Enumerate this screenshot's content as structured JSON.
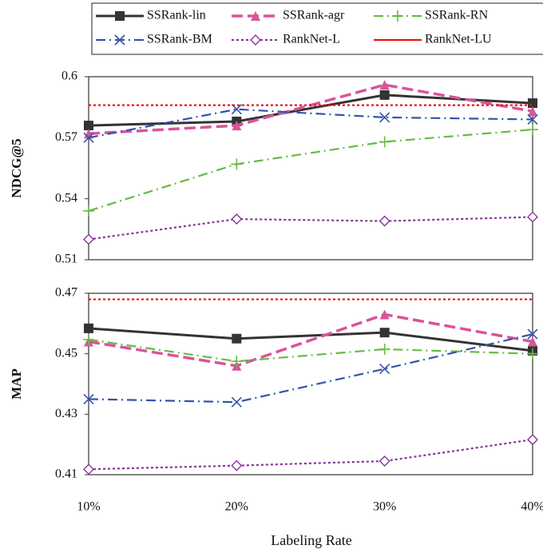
{
  "chart_data": [
    {
      "type": "line",
      "ylabel": "NDCG@5",
      "ylim": [
        0.51,
        0.6
      ],
      "yticks": [
        0.51,
        0.54,
        0.57,
        0.6
      ],
      "series": [
        {
          "name": "SSRank-lin",
          "color": "#333333",
          "dash": "solid",
          "marker": "square",
          "values": [
            0.576,
            0.578,
            0.591,
            0.587
          ]
        },
        {
          "name": "SSRank-agr",
          "color": "#d9549a",
          "dash": "long",
          "marker": "triangle",
          "values": [
            0.572,
            0.576,
            0.596,
            0.583
          ]
        },
        {
          "name": "SSRank-RN",
          "color": "#66bb44",
          "dash": "dashdot",
          "marker": "plus",
          "values": [
            0.534,
            0.557,
            0.568,
            0.574
          ]
        },
        {
          "name": "SSRank-BM",
          "color": "#3355aa",
          "dash": "dashdot",
          "marker": "x",
          "values": [
            0.57,
            0.584,
            0.58,
            0.579
          ]
        },
        {
          "name": "RankNet-L",
          "color": "#883399",
          "dash": "dotted",
          "marker": "diamond",
          "values": [
            0.52,
            0.53,
            0.529,
            0.531
          ]
        },
        {
          "name": "RankNet-LU",
          "color": "#ee1111",
          "dash": "dotted",
          "marker": "none",
          "values": [
            0.586,
            0.586,
            0.586,
            0.586
          ]
        }
      ]
    },
    {
      "type": "line",
      "ylabel": "MAP",
      "xlabel": "Labeling Rate",
      "categories": [
        "10%",
        "20%",
        "30%",
        "40%"
      ],
      "ylim": [
        0.41,
        0.47
      ],
      "yticks": [
        0.41,
        0.43,
        0.45,
        0.47
      ],
      "series": [
        {
          "color": "#333333",
          "dash": "solid",
          "marker": "square",
          "values": [
            0.4584,
            0.455,
            0.457,
            0.451
          ]
        },
        {
          "color": "#d9549a",
          "dash": "long",
          "marker": "triangle",
          "values": [
            0.454,
            0.446,
            0.463,
            0.454
          ]
        },
        {
          "color": "#66bb44",
          "dash": "dashdot",
          "marker": "plus",
          "values": [
            0.4547,
            0.4475,
            0.4515,
            0.45
          ]
        },
        {
          "color": "#3355aa",
          "dash": "dashdot",
          "marker": "x",
          "values": [
            0.435,
            0.434,
            0.445,
            0.4565
          ]
        },
        {
          "color": "#883399",
          "dash": "dotted",
          "marker": "diamond",
          "values": [
            0.4118,
            0.413,
            0.4145,
            0.4216
          ]
        },
        {
          "color": "#ee1111",
          "dash": "dotted",
          "marker": "none",
          "values": [
            0.468,
            0.468,
            0.468,
            0.468
          ]
        }
      ]
    }
  ]
}
